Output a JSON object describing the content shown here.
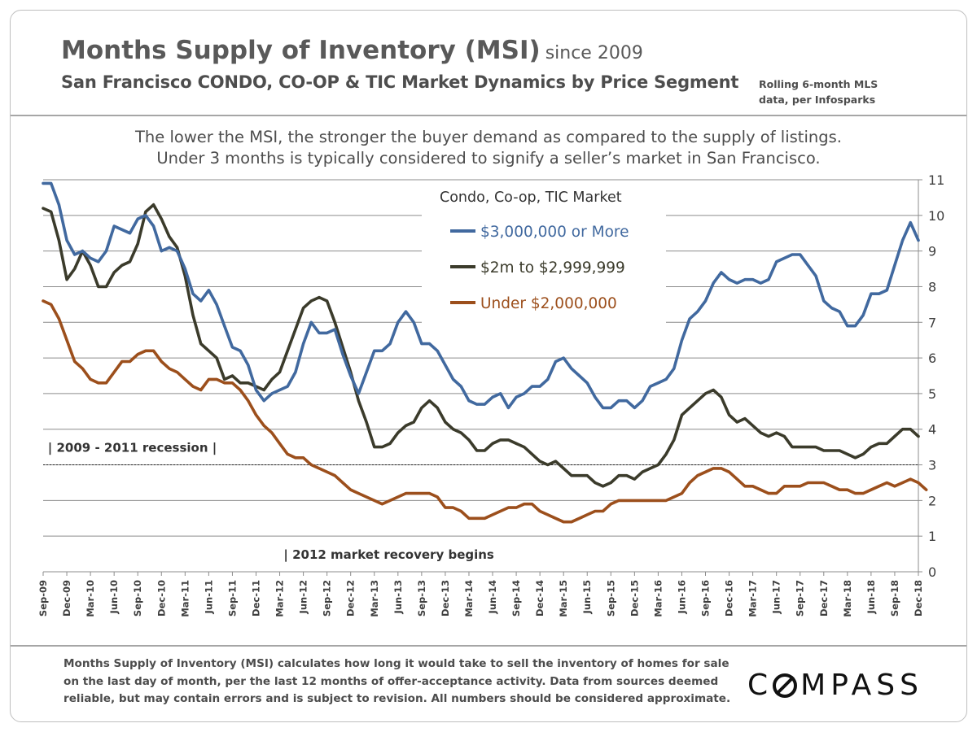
{
  "header": {
    "title": "Months Supply of Inventory (MSI)",
    "title_suffix": "since 2009",
    "subtitle": "San Francisco CONDO, CO-OP & TIC Market Dynamics by Price Segment",
    "source_line1": "Rolling 6-month  MLS",
    "source_line2": "data,  per Infosparks"
  },
  "lede": {
    "line1": "The lower the MSI, the stronger the buyer demand as compared to the supply of listings.",
    "line2": "Under 3 months is typically considered to signify a seller’s market in San Francisco."
  },
  "footer": {
    "line1": "Months Supply of Inventory (MSI) calculates how long it would take to sell the inventory of homes for sale",
    "line2": "on the last day of month, per the last 12 months of offer-acceptance activity. Data from sources deemed",
    "line3": "reliable, but may contain errors and is subject to revision. All numbers should be considered approximate.",
    "logo_prefix": "C",
    "logo_suffix": "MPASS"
  },
  "chart_data": {
    "type": "line",
    "legend_title": "Condo, Co-op, TIC Market",
    "legend_placement": "top-center",
    "grid": true,
    "ylim": [
      0,
      11
    ],
    "yticks": [
      0,
      1,
      2,
      3,
      4,
      5,
      6,
      7,
      8,
      9,
      10,
      11
    ],
    "y_axis_side": "right",
    "x_tick_labels": [
      "Sep-09",
      "Dec-09",
      "Mar-10",
      "Jun-10",
      "Sep-10",
      "Dec-10",
      "Mar-11",
      "Jun-11",
      "Sep-11",
      "Dec-11",
      "Mar-12",
      "Jun-12",
      "Sep-12",
      "Dec-12",
      "Mar-13",
      "Jun-13",
      "Sep-13",
      "Dec-13",
      "Mar-14",
      "Jun-14",
      "Sep-14",
      "Dec-14",
      "Mar-15",
      "Jun-15",
      "Sep-15",
      "Dec-15",
      "Mar-16",
      "Jun-16",
      "Sep-16",
      "Dec-16",
      "Mar-17",
      "Jun-17",
      "Sep-17",
      "Dec-17",
      "Mar-18",
      "Jun-18",
      "Sep-18",
      "Dec-18"
    ],
    "reference_line": {
      "y": 3,
      "style": "dotted"
    },
    "annotations": [
      {
        "text": "| 2009 - 2011 recession |",
        "x_month": 0.6,
        "y": 3.5
      },
      {
        "text": "| 2012 market recovery begins",
        "x_month": 30.5,
        "y": 0.5
      }
    ],
    "series": [
      {
        "name": "$3,000,000 or More",
        "color": "#41699f",
        "values": [
          10.9,
          10.9,
          10.3,
          9.3,
          8.9,
          9.0,
          8.8,
          8.7,
          9.0,
          9.7,
          9.6,
          9.5,
          9.9,
          10.0,
          9.7,
          9.0,
          9.1,
          9.0,
          8.5,
          7.8,
          7.6,
          7.9,
          7.5,
          6.9,
          6.3,
          6.2,
          5.8,
          5.1,
          4.8,
          5.0,
          5.1,
          5.2,
          5.6,
          6.4,
          7.0,
          6.7,
          6.7,
          6.8,
          6.1,
          5.5,
          5.0,
          5.6,
          6.2,
          6.2,
          6.4,
          7.0,
          7.3,
          7.0,
          6.4,
          6.4,
          6.2,
          5.8,
          5.4,
          5.2,
          4.8,
          4.7,
          4.7,
          4.9,
          5.0,
          4.6,
          4.9,
          5.0,
          5.2,
          5.2,
          5.4,
          5.9,
          6.0,
          5.7,
          5.5,
          5.3,
          4.9,
          4.6,
          4.6,
          4.8,
          4.8,
          4.6,
          4.8,
          5.2,
          5.3,
          5.4,
          5.7,
          6.5,
          7.1,
          7.3,
          7.6,
          8.1,
          8.4,
          8.2,
          8.1,
          8.2,
          8.2,
          8.1,
          8.2,
          8.7,
          8.8,
          8.9,
          8.9,
          8.6,
          8.3,
          7.6,
          7.4,
          7.3,
          6.9,
          6.9,
          7.2,
          7.8,
          7.8,
          7.9,
          8.6,
          9.3,
          9.8,
          9.3
        ]
      },
      {
        "name": "$2m to $2,999,999",
        "color": "#3b3b2b",
        "values": [
          10.2,
          10.1,
          9.3,
          8.2,
          8.5,
          9.0,
          8.6,
          8.0,
          8.0,
          8.4,
          8.6,
          8.7,
          9.2,
          10.1,
          10.3,
          9.9,
          9.4,
          9.1,
          8.3,
          7.2,
          6.4,
          6.2,
          6.0,
          5.4,
          5.5,
          5.3,
          5.3,
          5.2,
          5.1,
          5.4,
          5.6,
          6.2,
          6.8,
          7.4,
          7.6,
          7.7,
          7.6,
          7.0,
          6.3,
          5.6,
          4.8,
          4.2,
          3.5,
          3.5,
          3.6,
          3.9,
          4.1,
          4.2,
          4.6,
          4.8,
          4.6,
          4.2,
          4.0,
          3.9,
          3.7,
          3.4,
          3.4,
          3.6,
          3.7,
          3.7,
          3.6,
          3.5,
          3.3,
          3.1,
          3.0,
          3.1,
          2.9,
          2.7,
          2.7,
          2.7,
          2.5,
          2.4,
          2.5,
          2.7,
          2.7,
          2.6,
          2.8,
          2.9,
          3.0,
          3.3,
          3.7,
          4.4,
          4.6,
          4.8,
          5.0,
          5.1,
          4.9,
          4.4,
          4.2,
          4.3,
          4.1,
          3.9,
          3.8,
          3.9,
          3.8,
          3.5,
          3.5,
          3.5,
          3.5,
          3.4,
          3.4,
          3.4,
          3.3,
          3.2,
          3.3,
          3.5,
          3.6,
          3.6,
          3.8,
          4.0,
          4.0,
          3.8
        ]
      },
      {
        "name": "Under $2,000,000",
        "color": "#9c4f1c",
        "values": [
          7.6,
          7.5,
          7.1,
          6.5,
          5.9,
          5.7,
          5.4,
          5.3,
          5.3,
          5.6,
          5.9,
          5.9,
          6.1,
          6.2,
          6.2,
          5.9,
          5.7,
          5.6,
          5.4,
          5.2,
          5.1,
          5.4,
          5.4,
          5.3,
          5.3,
          5.1,
          4.8,
          4.4,
          4.1,
          3.9,
          3.6,
          3.3,
          3.2,
          3.2,
          3.0,
          2.9,
          2.8,
          2.7,
          2.5,
          2.3,
          2.2,
          2.1,
          2.0,
          1.9,
          2.0,
          2.1,
          2.2,
          2.2,
          2.2,
          2.2,
          2.1,
          1.8,
          1.8,
          1.7,
          1.5,
          1.5,
          1.5,
          1.6,
          1.7,
          1.8,
          1.8,
          1.9,
          1.9,
          1.7,
          1.6,
          1.5,
          1.4,
          1.4,
          1.5,
          1.6,
          1.7,
          1.7,
          1.9,
          2.0,
          2.0,
          2.0,
          2.0,
          2.0,
          2.0,
          2.0,
          2.1,
          2.2,
          2.5,
          2.7,
          2.8,
          2.9,
          2.9,
          2.8,
          2.6,
          2.4,
          2.4,
          2.3,
          2.2,
          2.2,
          2.4,
          2.4,
          2.4,
          2.5,
          2.5,
          2.5,
          2.4,
          2.3,
          2.3,
          2.2,
          2.2,
          2.3,
          2.4,
          2.5,
          2.4,
          2.5,
          2.6,
          2.5,
          2.3
        ]
      }
    ]
  }
}
